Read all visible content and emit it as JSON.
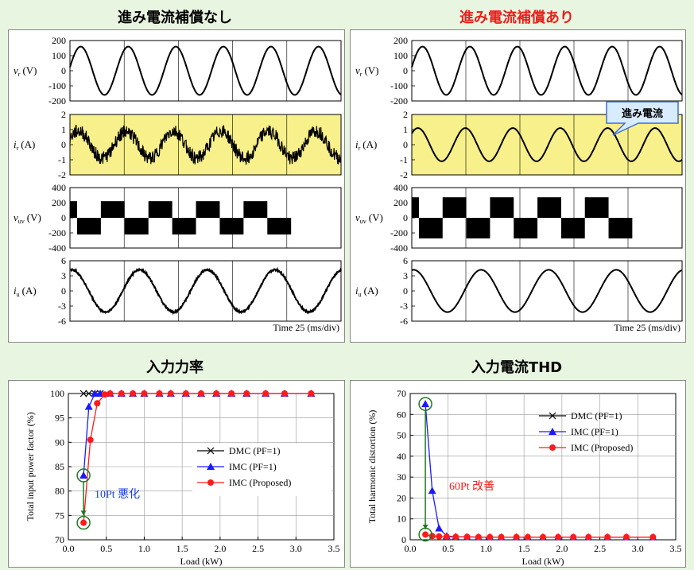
{
  "titles": {
    "top_left": "進み電流補償なし",
    "top_right": "進み電流補償あり",
    "bottom_left": "入力力率",
    "bottom_right": "入力電流THD"
  },
  "colors": {
    "accent_red": "#e8201c",
    "highlight_yellow": "#f8f08a",
    "series_blue": "#1a1aff",
    "series_red": "#ff1a1a",
    "annot_blue": "#1a3fe0"
  },
  "waveforms": {
    "time_label": "Time 25 (ms/div)",
    "callout_label": "進み電流",
    "rows": [
      {
        "key": "vr",
        "label_main": "v",
        "label_sub": "r",
        "unit": "(V)",
        "ticks": [
          "200",
          "100",
          "0",
          "-100",
          "-200"
        ],
        "ymin": -200,
        "ymax": 200
      },
      {
        "key": "ir",
        "label_main": "i",
        "label_sub": "r",
        "unit": "(A)",
        "ticks": [
          "2",
          "1",
          "0",
          "-1",
          "-2"
        ],
        "ymin": -2,
        "ymax": 2,
        "highlight": true
      },
      {
        "key": "vuv",
        "label_main": "v",
        "label_sub": "uv",
        "unit": "(V)",
        "ticks": [
          "400",
          "200",
          "0",
          "-200",
          "-400"
        ],
        "ymin": -400,
        "ymax": 400
      },
      {
        "key": "iu",
        "label_main": "i",
        "label_sub": "u",
        "unit": "(A)",
        "ticks": [
          "6",
          "3",
          "0",
          "-3",
          "-6"
        ],
        "ymin": -6,
        "ymax": 6
      }
    ]
  },
  "chart_data": [
    {
      "type": "line",
      "title": "入力力率",
      "xlabel": "Load (kW)",
      "ylabel": "Total input power factor (%)",
      "xlim": [
        0.0,
        3.5
      ],
      "ylim": [
        70,
        100
      ],
      "xticks": [
        "0.0",
        "0.5",
        "1.0",
        "1.5",
        "2.0",
        "2.5",
        "3.0",
        "3.5"
      ],
      "yticks": [
        "70",
        "75",
        "80",
        "85",
        "90",
        "95",
        "100"
      ],
      "legend_position": "right",
      "annotation": "10Pt 悪化",
      "series": [
        {
          "name": "DMC (PF=1)",
          "marker": "x",
          "color": "#000000",
          "x": [
            0.2,
            0.27,
            0.35,
            0.42
          ],
          "y": [
            100,
            100,
            100,
            100
          ]
        },
        {
          "name": "IMC (PF=1)",
          "marker": "triangle",
          "color": "#1a1aff",
          "x": [
            0.2,
            0.27,
            0.35,
            0.42,
            0.55,
            0.7,
            0.85,
            1.0,
            1.2,
            1.35,
            1.55,
            1.75,
            1.95,
            2.15,
            2.35,
            2.6,
            2.85,
            3.2
          ],
          "y": [
            83.2,
            97.3,
            100,
            100,
            100,
            100,
            100,
            100,
            100,
            100,
            100,
            100,
            100,
            100,
            100,
            100,
            100,
            100
          ]
        },
        {
          "name": "IMC (Proposed)",
          "marker": "circle",
          "color": "#ff1a1a",
          "x": [
            0.2,
            0.29,
            0.38,
            0.48,
            0.55,
            0.7,
            0.85,
            1.0,
            1.2,
            1.35,
            1.55,
            1.75,
            1.95,
            2.15,
            2.35,
            2.6,
            2.85,
            3.2
          ],
          "y": [
            73.5,
            90.5,
            98,
            99.8,
            100,
            100,
            100,
            100,
            100,
            100,
            100,
            100,
            100,
            100,
            100,
            100,
            100,
            100
          ]
        }
      ]
    },
    {
      "type": "line",
      "title": "入力電流THD",
      "xlabel": "Load (kW)",
      "ylabel": "Total harmonic distortion (%)",
      "xlim": [
        0.0,
        3.5
      ],
      "ylim": [
        0,
        70
      ],
      "xticks": [
        "0.0",
        "0.5",
        "1.0",
        "1.5",
        "2.0",
        "2.5",
        "3.0",
        "3.5"
      ],
      "yticks": [
        "0",
        "10",
        "20",
        "30",
        "40",
        "50",
        "60",
        "70"
      ],
      "legend_position": "top-right",
      "annotation": "60Pt 改善",
      "series": [
        {
          "name": "DMC (PF=1)",
          "marker": "x",
          "color": "#000000",
          "x": [],
          "y": []
        },
        {
          "name": "IMC (PF=1)",
          "marker": "triangle",
          "color": "#1a1aff",
          "x": [
            0.2,
            0.29,
            0.38,
            0.48,
            0.6,
            0.75,
            0.9,
            1.05,
            1.2,
            1.4,
            1.55,
            1.75,
            1.95,
            2.15,
            2.35,
            2.6,
            2.85,
            3.2
          ],
          "y": [
            65,
            23.5,
            5.5,
            1.8,
            1.5,
            1.4,
            1.3,
            1.3,
            1.3,
            1.3,
            1.3,
            1.3,
            1.3,
            1.3,
            1.3,
            1.3,
            1.3,
            1.3
          ]
        },
        {
          "name": "IMC (Proposed)",
          "marker": "circle",
          "color": "#ff1a1a",
          "x": [
            0.2,
            0.29,
            0.38,
            0.48,
            0.6,
            0.75,
            0.9,
            1.05,
            1.2,
            1.4,
            1.55,
            1.75,
            1.95,
            2.15,
            2.35,
            2.6,
            2.85,
            3.2
          ],
          "y": [
            2.5,
            1.8,
            1.6,
            1.5,
            1.4,
            1.4,
            1.3,
            1.3,
            1.3,
            1.3,
            1.3,
            1.3,
            1.3,
            1.3,
            1.3,
            1.3,
            1.3,
            1.3
          ]
        }
      ]
    }
  ]
}
